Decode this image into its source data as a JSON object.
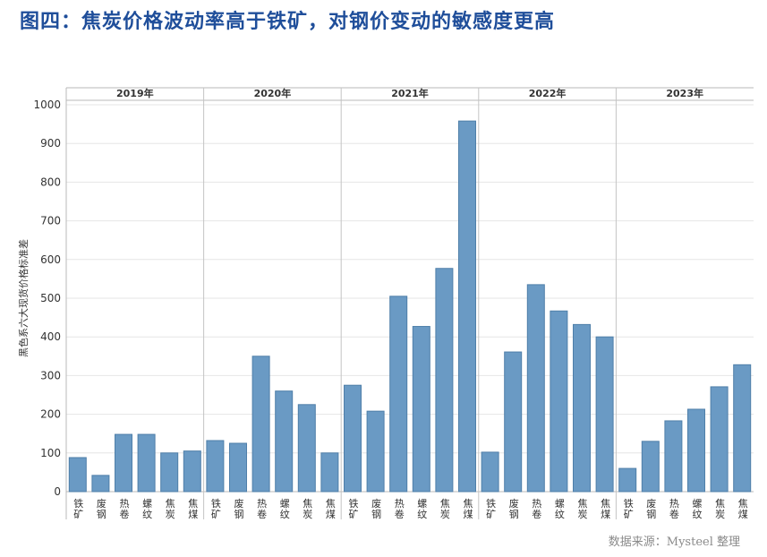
{
  "title": "图四：焦炭价格波动率高于铁矿，对钢价变动的敏感度更高",
  "source": "数据来源：Mysteel 整理",
  "chart_data": {
    "type": "bar",
    "ylabel": "黑色系六大现货价格标准差",
    "ylim": [
      0,
      1000
    ],
    "yticks": [
      0,
      100,
      200,
      300,
      400,
      500,
      600,
      700,
      800,
      900,
      1000
    ],
    "grid": true,
    "categories": [
      "铁矿",
      "废钢",
      "热卷",
      "螺纹",
      "焦炭",
      "焦煤"
    ],
    "groups": [
      {
        "year": "2019年",
        "values": [
          88,
          42,
          148,
          148,
          100,
          105
        ]
      },
      {
        "year": "2020年",
        "values": [
          132,
          125,
          350,
          260,
          225,
          100
        ]
      },
      {
        "year": "2021年",
        "values": [
          275,
          208,
          505,
          427,
          577,
          958
        ]
      },
      {
        "year": "2022年",
        "values": [
          102,
          361,
          535,
          467,
          432,
          400
        ]
      },
      {
        "year": "2023年",
        "values": [
          60,
          130,
          183,
          213,
          271,
          328
        ]
      }
    ],
    "bar_color": "#6a9ac4",
    "bar_edge": "#4f7fa9"
  }
}
